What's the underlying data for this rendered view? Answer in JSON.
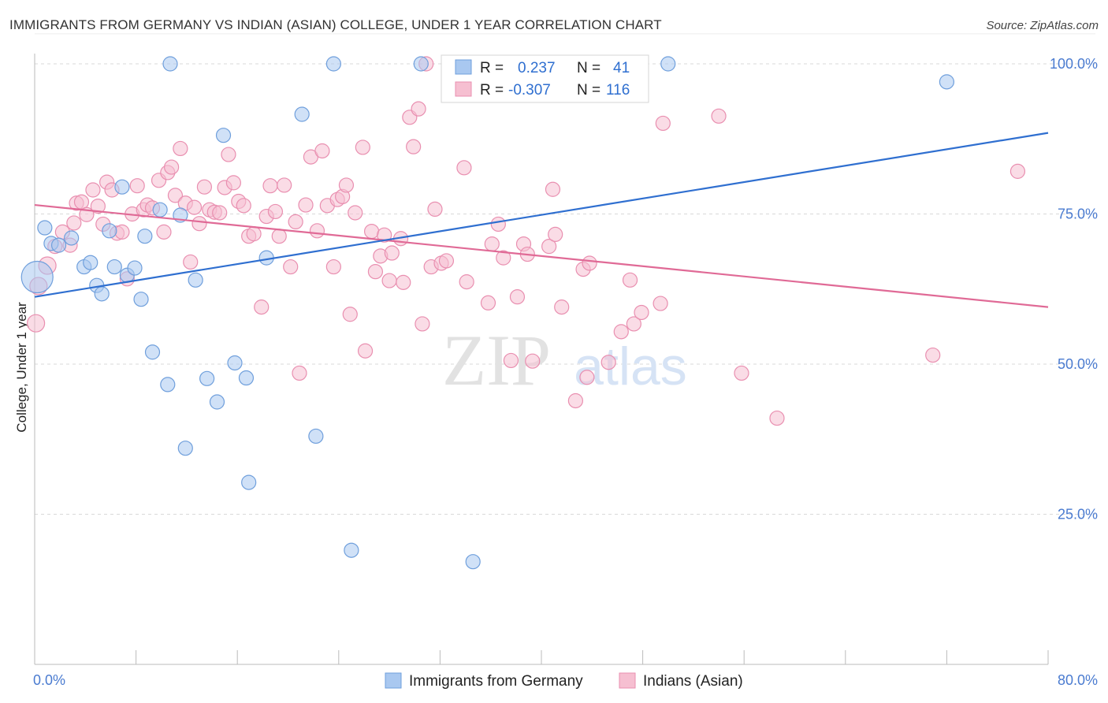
{
  "title": "IMMIGRANTS FROM GERMANY VS INDIAN (ASIAN) COLLEGE, UNDER 1 YEAR CORRELATION CHART",
  "source": "Source: ZipAtlas.com",
  "watermark": {
    "zip": "ZIP",
    "atlas": "atlas"
  },
  "colors": {
    "blue_fill": "#a9c8f0",
    "blue_stroke": "#6f9fdc",
    "blue_line": "#2f6fd0",
    "pink_fill": "#f6bfd1",
    "pink_stroke": "#e98fb0",
    "pink_line": "#e06a96",
    "axis_text": "#4a7bd0",
    "grid": "#d9d9d9"
  },
  "legend_box": {
    "rows": [
      {
        "r_label": "R =",
        "r_value": "0.237",
        "n_label": "N =",
        "n_value": "41",
        "series": "blue"
      },
      {
        "r_label": "R =",
        "r_value": "-0.307",
        "n_label": "N =",
        "n_value": "116",
        "series": "pink"
      }
    ]
  },
  "chart_data": {
    "type": "scatter",
    "title": "IMMIGRANTS FROM GERMANY VS INDIAN (ASIAN) COLLEGE, UNDER 1 YEAR CORRELATION CHART",
    "xlabel": "",
    "ylabel": "College, Under 1 year",
    "xlim": [
      0,
      80
    ],
    "ylim": [
      0,
      105
    ],
    "x_tick_labels": [
      "0.0%",
      "80.0%"
    ],
    "y_ticks": [
      25,
      50,
      75,
      100
    ],
    "y_tick_labels": [
      "25.0%",
      "50.0%",
      "75.0%",
      "100.0%"
    ],
    "grid": true,
    "legend_placement": "bottom-center",
    "series": [
      {
        "name": "Immigrants from Germany",
        "color": "blue",
        "R": 0.237,
        "N": 41,
        "trend": [
          [
            0,
            61.2
          ],
          [
            80,
            88.5
          ]
        ],
        "points": [
          [
            0.2,
            64.5,
            20
          ],
          [
            0.8,
            72.7,
            9
          ],
          [
            1.3,
            70.1,
            9
          ],
          [
            1.9,
            69.8,
            9
          ],
          [
            2.9,
            71.0,
            9
          ],
          [
            3.9,
            66.2,
            9
          ],
          [
            4.4,
            66.9,
            9
          ],
          [
            4.9,
            63.1,
            9
          ],
          [
            5.3,
            61.7,
            9
          ],
          [
            5.9,
            72.2,
            9
          ],
          [
            6.3,
            66.2,
            9
          ],
          [
            6.9,
            79.5,
            9
          ],
          [
            7.3,
            64.8,
            9
          ],
          [
            7.9,
            66.0,
            9
          ],
          [
            8.4,
            60.8,
            9
          ],
          [
            8.7,
            71.3,
            9
          ],
          [
            9.3,
            52.0,
            9
          ],
          [
            9.9,
            75.7,
            9
          ],
          [
            10.5,
            46.6,
            9
          ],
          [
            10.7,
            100,
            9
          ],
          [
            11.5,
            74.8,
            9
          ],
          [
            11.9,
            36.0,
            9
          ],
          [
            12.7,
            64.0,
            9
          ],
          [
            13.6,
            47.6,
            9
          ],
          [
            14.4,
            43.7,
            9
          ],
          [
            14.9,
            88.1,
            9
          ],
          [
            15.8,
            50.2,
            9
          ],
          [
            16.7,
            47.7,
            9
          ],
          [
            16.9,
            30.3,
            9
          ],
          [
            18.3,
            67.7,
            9
          ],
          [
            21.1,
            91.6,
            9
          ],
          [
            22.2,
            38.0,
            9
          ],
          [
            23.6,
            100,
            9
          ],
          [
            25.0,
            19.0,
            9
          ],
          [
            30.5,
            100,
            9
          ],
          [
            34.6,
            17.1,
            9
          ],
          [
            47.8,
            100,
            9
          ],
          [
            50.0,
            100,
            9
          ],
          [
            72.0,
            97.0,
            9
          ]
        ]
      },
      {
        "name": "Indians (Asian)",
        "color": "pink",
        "R": -0.307,
        "N": 116,
        "trend": [
          [
            0,
            76.5
          ],
          [
            80,
            59.5
          ]
        ],
        "points": [
          [
            0.1,
            56.8,
            11
          ],
          [
            0.3,
            63.0,
            11
          ],
          [
            1.0,
            66.4,
            11
          ],
          [
            1.6,
            69.6,
            9
          ],
          [
            2.2,
            72.0,
            9
          ],
          [
            2.8,
            69.8,
            9
          ],
          [
            3.1,
            73.5,
            9
          ],
          [
            3.3,
            76.8,
            9
          ],
          [
            3.7,
            77.0,
            9
          ],
          [
            4.1,
            74.9,
            9
          ],
          [
            4.6,
            79.0,
            9
          ],
          [
            5.0,
            76.3,
            9
          ],
          [
            5.4,
            73.3,
            9
          ],
          [
            5.7,
            80.3,
            9
          ],
          [
            6.1,
            79.0,
            9
          ],
          [
            6.5,
            71.8,
            9
          ],
          [
            6.9,
            72.0,
            9
          ],
          [
            7.3,
            64.2,
            9
          ],
          [
            7.7,
            75.0,
            9
          ],
          [
            8.1,
            79.7,
            9
          ],
          [
            8.6,
            75.7,
            9
          ],
          [
            8.9,
            76.5,
            9
          ],
          [
            9.3,
            76.0,
            9
          ],
          [
            9.8,
            80.6,
            9
          ],
          [
            10.2,
            72.0,
            9
          ],
          [
            10.5,
            81.9,
            9
          ],
          [
            10.8,
            82.8,
            9
          ],
          [
            11.1,
            78.1,
            9
          ],
          [
            11.5,
            85.9,
            9
          ],
          [
            11.9,
            76.8,
            9
          ],
          [
            12.3,
            67.0,
            9
          ],
          [
            12.6,
            76.1,
            9
          ],
          [
            13.0,
            73.4,
            9
          ],
          [
            13.4,
            79.5,
            9
          ],
          [
            13.8,
            75.7,
            9
          ],
          [
            14.2,
            75.3,
            9
          ],
          [
            14.6,
            75.2,
            9
          ],
          [
            15.0,
            79.4,
            9
          ],
          [
            15.3,
            84.9,
            9
          ],
          [
            15.7,
            80.2,
            9
          ],
          [
            16.1,
            77.1,
            9
          ],
          [
            16.5,
            76.4,
            9
          ],
          [
            16.9,
            71.3,
            9
          ],
          [
            17.3,
            71.7,
            9
          ],
          [
            17.9,
            59.5,
            9
          ],
          [
            18.3,
            74.6,
            9
          ],
          [
            18.6,
            79.7,
            9
          ],
          [
            19.0,
            75.4,
            9
          ],
          [
            19.3,
            71.3,
            9
          ],
          [
            19.7,
            79.8,
            9
          ],
          [
            20.2,
            66.2,
            9
          ],
          [
            20.6,
            73.7,
            9
          ],
          [
            20.9,
            48.5,
            9
          ],
          [
            21.4,
            76.5,
            9
          ],
          [
            21.8,
            84.5,
            9
          ],
          [
            22.3,
            72.2,
            9
          ],
          [
            22.7,
            85.5,
            9
          ],
          [
            23.1,
            76.4,
            9
          ],
          [
            23.6,
            66.2,
            9
          ],
          [
            23.9,
            77.4,
            9
          ],
          [
            24.3,
            77.9,
            9
          ],
          [
            24.6,
            79.8,
            9
          ],
          [
            24.9,
            58.3,
            9
          ],
          [
            25.3,
            75.2,
            9
          ],
          [
            25.9,
            86.1,
            9
          ],
          [
            26.1,
            52.2,
            9
          ],
          [
            26.6,
            72.1,
            9
          ],
          [
            26.9,
            65.4,
            9
          ],
          [
            27.3,
            68.0,
            9
          ],
          [
            27.6,
            71.5,
            9
          ],
          [
            28.0,
            63.9,
            9
          ],
          [
            28.2,
            68.5,
            9
          ],
          [
            28.9,
            70.9,
            9
          ],
          [
            29.1,
            63.6,
            9
          ],
          [
            29.6,
            91.1,
            9
          ],
          [
            29.9,
            86.2,
            9
          ],
          [
            30.3,
            92.5,
            9
          ],
          [
            30.6,
            56.7,
            9
          ],
          [
            30.9,
            100,
            9
          ],
          [
            31.3,
            66.2,
            9
          ],
          [
            31.6,
            75.8,
            9
          ],
          [
            32.1,
            66.8,
            9
          ],
          [
            32.5,
            67.2,
            9
          ],
          [
            33.9,
            82.7,
            9
          ],
          [
            34.1,
            63.7,
            9
          ],
          [
            35.8,
            60.2,
            9
          ],
          [
            36.1,
            70.0,
            9
          ],
          [
            36.6,
            73.3,
            9
          ],
          [
            37.0,
            67.7,
            9
          ],
          [
            37.6,
            50.6,
            9
          ],
          [
            38.1,
            61.2,
            9
          ],
          [
            38.6,
            70.0,
            9
          ],
          [
            38.9,
            68.3,
            9
          ],
          [
            39.3,
            50.5,
            9
          ],
          [
            40.6,
            69.6,
            9
          ],
          [
            40.9,
            79.1,
            9
          ],
          [
            41.1,
            71.6,
            9
          ],
          [
            41.6,
            59.5,
            9
          ],
          [
            42.7,
            43.9,
            9
          ],
          [
            43.3,
            65.8,
            9
          ],
          [
            43.6,
            47.8,
            9
          ],
          [
            43.8,
            66.8,
            9
          ],
          [
            45.3,
            50.3,
            9
          ],
          [
            46.3,
            55.4,
            9
          ],
          [
            47.0,
            64.0,
            9
          ],
          [
            47.3,
            56.7,
            9
          ],
          [
            47.9,
            58.6,
            9
          ],
          [
            49.4,
            60.1,
            9
          ],
          [
            49.6,
            90.1,
            9
          ],
          [
            54.0,
            91.3,
            9
          ],
          [
            55.8,
            48.5,
            9
          ],
          [
            58.6,
            41.0,
            9
          ],
          [
            70.9,
            51.5,
            9
          ],
          [
            77.6,
            82.1,
            9
          ]
        ]
      }
    ]
  }
}
